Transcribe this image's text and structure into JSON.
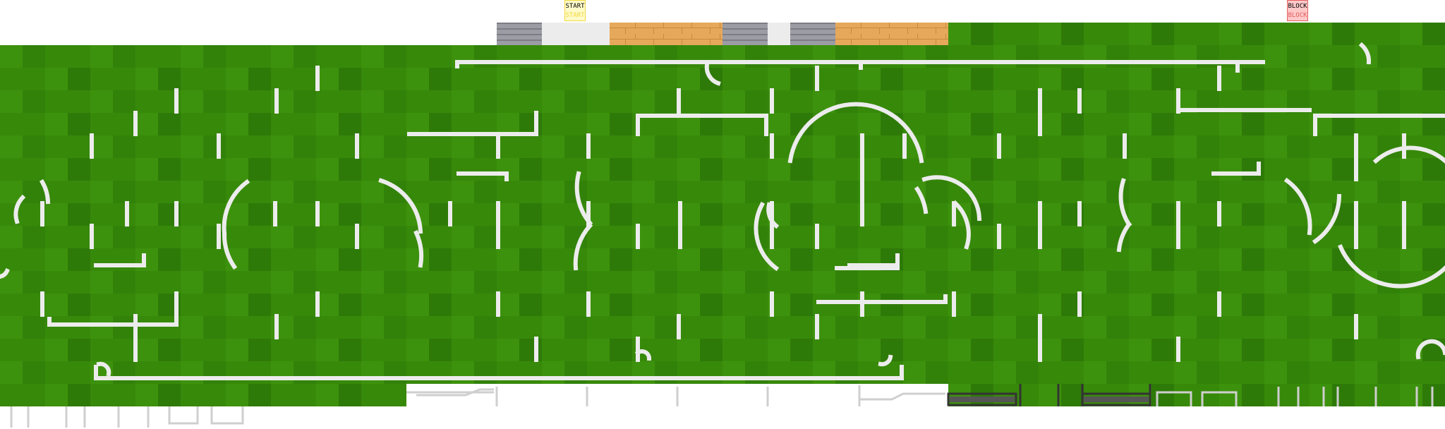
{
  "markers": {
    "start": {
      "label": "START",
      "sublabel": "START",
      "fill": "#fffbc8",
      "border": "#f2d740",
      "subcolor": "#f2d740"
    },
    "block": {
      "label": "BLOCK",
      "sublabel": "BLOCK",
      "fill": "#ffc8c8",
      "border": "#e26060",
      "subcolor": "#e26060"
    }
  },
  "palette": {
    "grass_light": "#3b8f0c",
    "grass_mid": "#338409",
    "grass_dark": "#2b7507",
    "line": "#ececec",
    "wood": "#e8a95c",
    "stone": "#9a9aa2",
    "concrete": "#ececec"
  },
  "tiles": {
    "field_tile": "grass",
    "lines": "pitch-markings",
    "strip_tiles": [
      "stone",
      "concrete",
      "wood",
      "stone",
      "concrete",
      "stone",
      "wood"
    ]
  }
}
